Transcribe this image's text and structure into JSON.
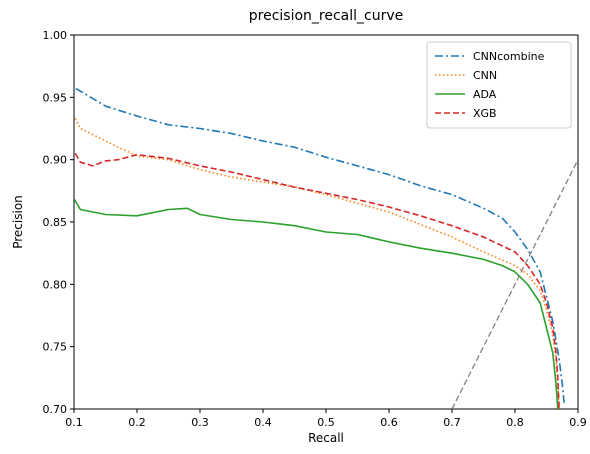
{
  "chart_data": {
    "type": "line",
    "title": "precision_recall_curve",
    "xlabel": "Recall",
    "ylabel": "Precision",
    "xlim": [
      0.1,
      0.9
    ],
    "ylim": [
      0.7,
      1.0
    ],
    "x_ticks": [
      "0.1",
      "0.2",
      "0.3",
      "0.4",
      "0.5",
      "0.6",
      "0.7",
      "0.8",
      "0.9"
    ],
    "y_ticks": [
      "0.70",
      "0.75",
      "0.80",
      "0.85",
      "0.90",
      "0.95",
      "1.00"
    ],
    "grid": false,
    "legend_position": "top-right",
    "series": [
      {
        "name": "CNNcombine",
        "color": "#1f77b4",
        "dash": "dashdot",
        "points": [
          [
            0.103,
            0.957
          ],
          [
            0.12,
            0.952
          ],
          [
            0.15,
            0.943
          ],
          [
            0.2,
            0.935
          ],
          [
            0.25,
            0.928
          ],
          [
            0.3,
            0.925
          ],
          [
            0.35,
            0.921
          ],
          [
            0.4,
            0.915
          ],
          [
            0.45,
            0.91
          ],
          [
            0.5,
            0.902
          ],
          [
            0.55,
            0.895
          ],
          [
            0.6,
            0.888
          ],
          [
            0.65,
            0.879
          ],
          [
            0.7,
            0.872
          ],
          [
            0.75,
            0.861
          ],
          [
            0.78,
            0.853
          ],
          [
            0.8,
            0.842
          ],
          [
            0.82,
            0.828
          ],
          [
            0.84,
            0.81
          ],
          [
            0.85,
            0.79
          ],
          [
            0.86,
            0.77
          ],
          [
            0.87,
            0.74
          ],
          [
            0.875,
            0.72
          ],
          [
            0.878,
            0.705
          ]
        ]
      },
      {
        "name": "CNN",
        "color": "#ff7f0e",
        "dash": "dotted",
        "points": [
          [
            0.102,
            0.933
          ],
          [
            0.11,
            0.925
          ],
          [
            0.13,
            0.92
          ],
          [
            0.15,
            0.915
          ],
          [
            0.17,
            0.91
          ],
          [
            0.2,
            0.903
          ],
          [
            0.25,
            0.9
          ],
          [
            0.3,
            0.892
          ],
          [
            0.35,
            0.886
          ],
          [
            0.4,
            0.882
          ],
          [
            0.45,
            0.878
          ],
          [
            0.5,
            0.872
          ],
          [
            0.55,
            0.865
          ],
          [
            0.6,
            0.858
          ],
          [
            0.65,
            0.848
          ],
          [
            0.7,
            0.838
          ],
          [
            0.75,
            0.826
          ],
          [
            0.8,
            0.815
          ],
          [
            0.82,
            0.808
          ],
          [
            0.84,
            0.795
          ],
          [
            0.85,
            0.78
          ],
          [
            0.86,
            0.76
          ],
          [
            0.865,
            0.74
          ],
          [
            0.868,
            0.72
          ],
          [
            0.87,
            0.7
          ]
        ]
      },
      {
        "name": "ADA",
        "color": "#2ca02c",
        "dash": "solid",
        "points": [
          [
            0.101,
            0.868
          ],
          [
            0.11,
            0.86
          ],
          [
            0.15,
            0.856
          ],
          [
            0.2,
            0.855
          ],
          [
            0.25,
            0.86
          ],
          [
            0.28,
            0.861
          ],
          [
            0.3,
            0.856
          ],
          [
            0.35,
            0.852
          ],
          [
            0.4,
            0.85
          ],
          [
            0.45,
            0.847
          ],
          [
            0.5,
            0.842
          ],
          [
            0.55,
            0.84
          ],
          [
            0.6,
            0.834
          ],
          [
            0.65,
            0.829
          ],
          [
            0.7,
            0.825
          ],
          [
            0.75,
            0.82
          ],
          [
            0.78,
            0.815
          ],
          [
            0.8,
            0.81
          ],
          [
            0.82,
            0.8
          ],
          [
            0.84,
            0.785
          ],
          [
            0.85,
            0.765
          ],
          [
            0.86,
            0.745
          ],
          [
            0.865,
            0.72
          ],
          [
            0.868,
            0.7
          ]
        ]
      },
      {
        "name": "XGB",
        "color": "#d62728",
        "dash": "dashed",
        "points": [
          [
            0.102,
            0.905
          ],
          [
            0.11,
            0.898
          ],
          [
            0.13,
            0.895
          ],
          [
            0.15,
            0.899
          ],
          [
            0.17,
            0.9
          ],
          [
            0.2,
            0.904
          ],
          [
            0.25,
            0.901
          ],
          [
            0.3,
            0.895
          ],
          [
            0.35,
            0.89
          ],
          [
            0.4,
            0.884
          ],
          [
            0.45,
            0.878
          ],
          [
            0.5,
            0.873
          ],
          [
            0.55,
            0.868
          ],
          [
            0.6,
            0.862
          ],
          [
            0.65,
            0.855
          ],
          [
            0.7,
            0.847
          ],
          [
            0.75,
            0.838
          ],
          [
            0.8,
            0.826
          ],
          [
            0.82,
            0.815
          ],
          [
            0.84,
            0.8
          ],
          [
            0.85,
            0.785
          ],
          [
            0.86,
            0.765
          ],
          [
            0.865,
            0.745
          ],
          [
            0.868,
            0.725
          ],
          [
            0.87,
            0.7
          ]
        ]
      },
      {
        "name": "",
        "color": "#808080",
        "dash": "dashed",
        "points": [
          [
            0.7,
            0.7
          ],
          [
            0.9,
            0.9
          ]
        ]
      }
    ]
  }
}
